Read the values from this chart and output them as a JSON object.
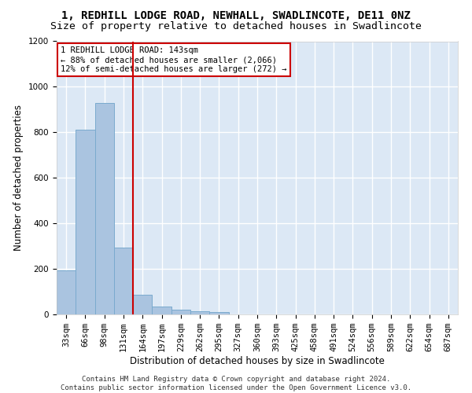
{
  "title": "1, REDHILL LODGE ROAD, NEWHALL, SWADLINCOTE, DE11 0NZ",
  "subtitle": "Size of property relative to detached houses in Swadlincote",
  "xlabel": "Distribution of detached houses by size in Swadlincote",
  "ylabel": "Number of detached properties",
  "bar_labels": [
    "33sqm",
    "66sqm",
    "98sqm",
    "131sqm",
    "164sqm",
    "197sqm",
    "229sqm",
    "262sqm",
    "295sqm",
    "327sqm",
    "360sqm",
    "393sqm",
    "425sqm",
    "458sqm",
    "491sqm",
    "524sqm",
    "556sqm",
    "589sqm",
    "622sqm",
    "654sqm",
    "687sqm"
  ],
  "bar_values": [
    193,
    810,
    930,
    295,
    88,
    35,
    20,
    15,
    12,
    0,
    0,
    0,
    0,
    0,
    0,
    0,
    0,
    0,
    0,
    0,
    0
  ],
  "bar_color": "#aac4e0",
  "bar_edge_color": "#7aaace",
  "bg_color": "#dce8f5",
  "grid_color": "#ffffff",
  "vline_color": "#cc0000",
  "annotation_text": "1 REDHILL LODGE ROAD: 143sqm\n← 88% of detached houses are smaller (2,066)\n12% of semi-detached houses are larger (272) →",
  "annotation_box_color": "#ffffff",
  "annotation_box_edge": "#cc0000",
  "ylim": [
    0,
    1200
  ],
  "yticks": [
    0,
    200,
    400,
    600,
    800,
    1000,
    1200
  ],
  "footer_line1": "Contains HM Land Registry data © Crown copyright and database right 2024.",
  "footer_line2": "Contains public sector information licensed under the Open Government Licence v3.0.",
  "title_fontsize": 10,
  "subtitle_fontsize": 9.5,
  "axis_label_fontsize": 8.5,
  "tick_fontsize": 7.5,
  "annotation_fontsize": 7.5,
  "footer_fontsize": 6.5,
  "fig_bg": "#ffffff"
}
